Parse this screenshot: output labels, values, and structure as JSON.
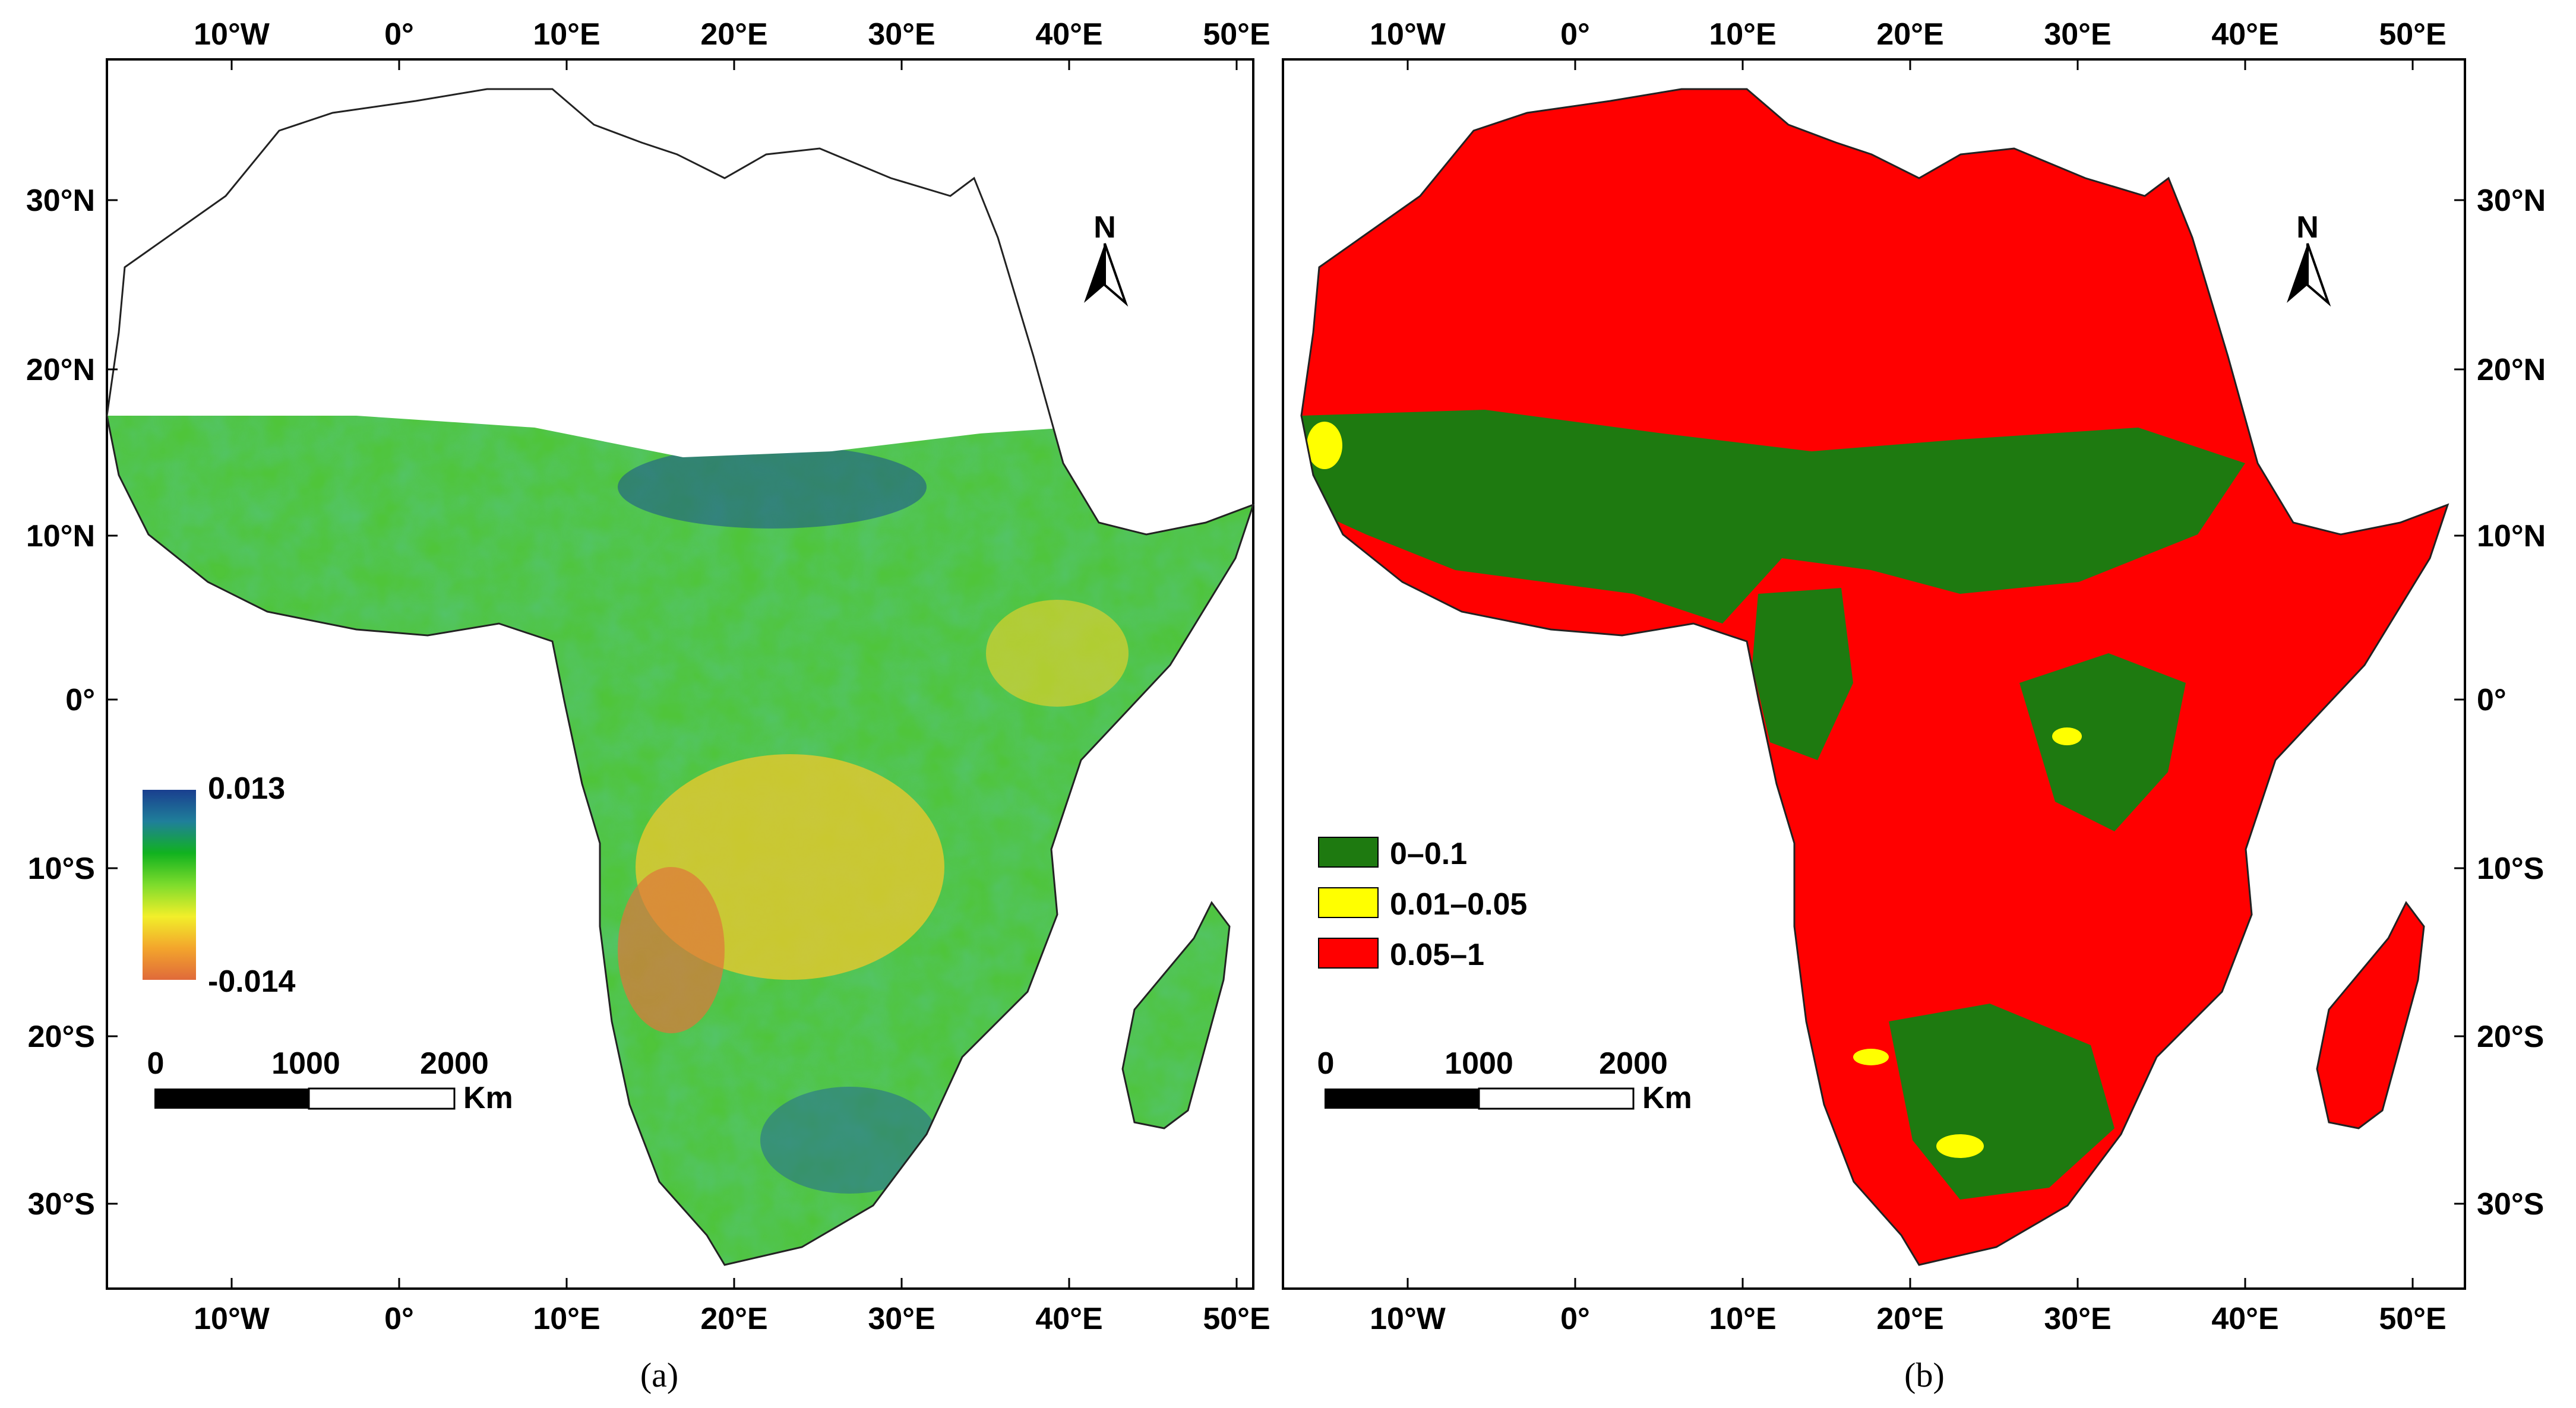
{
  "panel_a": {
    "caption": "(a)",
    "lon_ticks": [
      "10°W",
      "0°",
      "10°E",
      "20°E",
      "30°E",
      "40°E",
      "50°E"
    ],
    "lat_ticks": [
      "30°N",
      "20°N",
      "10°N",
      "0°",
      "10°S",
      "20°S",
      "30°S"
    ],
    "north_label": "N",
    "legend": {
      "max_label": "0.013",
      "min_label": "-0.014",
      "colors": [
        "#1a3f8f",
        "#1f7f9a",
        "#11b21f",
        "#7ddc2c",
        "#f2ef2a",
        "#f3a52c",
        "#e06a3a"
      ]
    },
    "scale_bar": {
      "labels": [
        "0",
        "1000",
        "2000"
      ],
      "unit": "Km"
    }
  },
  "panel_b": {
    "caption": "(b)",
    "lon_ticks": [
      "10°W",
      "0°",
      "10°E",
      "20°E",
      "30°E",
      "40°E",
      "50°E"
    ],
    "lat_ticks": [
      "30°N",
      "20°N",
      "10°N",
      "0°",
      "10°S",
      "20°S",
      "30°S"
    ],
    "north_label": "N",
    "legend": [
      {
        "label": "0–0.1",
        "color": "#1e7a10"
      },
      {
        "label": "0.01–0.05",
        "color": "#ffff00"
      },
      {
        "label": "0.05–1",
        "color": "#ff0000"
      }
    ],
    "scale_bar": {
      "labels": [
        "0",
        "1000",
        "2000"
      ],
      "unit": "Km"
    }
  },
  "colors": {
    "desert_a": "#ffffff",
    "vegetation_a": "#4fc53a",
    "background_b": "#ff0000",
    "significant_b": "#1e7a10",
    "outline": "#222222"
  }
}
